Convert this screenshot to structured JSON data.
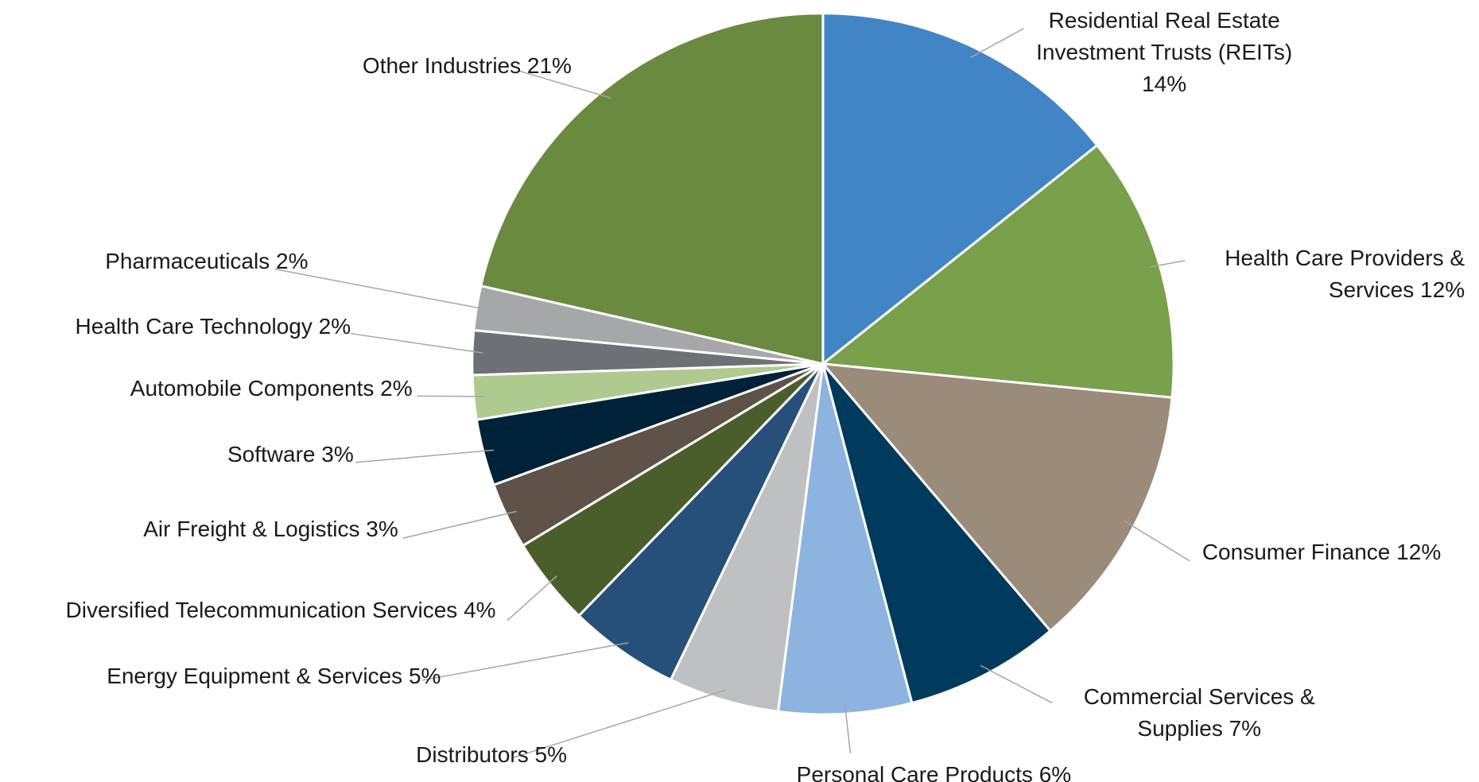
{
  "chart_data": {
    "type": "pie",
    "categories": [
      "Residential Real Estate Investment Trusts (REITs)",
      "Health Care Providers & Services",
      "Consumer Finance",
      "Commercial Services & Supplies",
      "Personal Care Products",
      "Distributors",
      "Energy Equipment & Services",
      "Diversified Telecommunication Services",
      "Air Freight & Logistics",
      "Software",
      "Automobile Components",
      "Health Care Technology",
      "Pharmaceuticals",
      "Other Industries"
    ],
    "values": [
      14,
      12,
      12,
      7,
      6,
      5,
      5,
      4,
      3,
      3,
      2,
      2,
      2,
      21
    ],
    "value_labels": [
      "14%",
      "12%",
      "12%",
      "7%",
      "6%",
      "5%",
      "5%",
      "4%",
      "3%",
      "3%",
      "2%",
      "2%",
      "2%",
      "21%"
    ],
    "colors": [
      "#4285c7",
      "#79a04a",
      "#9b8b7b",
      "#003a5d",
      "#8db4e0",
      "#bfc0c2",
      "#26507a",
      "#4a5e2c",
      "#5f5248",
      "#002238",
      "#aeca8e",
      "#6d7075",
      "#a6a7a9",
      "#6a8a40"
    ]
  }
}
